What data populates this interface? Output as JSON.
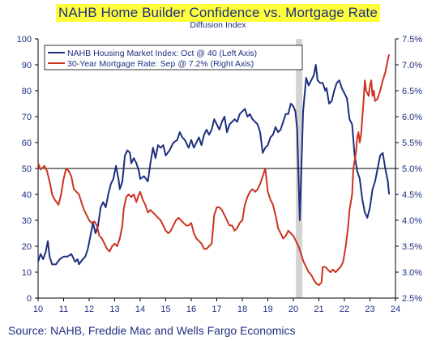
{
  "chart_data": {
    "type": "line",
    "title": "NAHB Home Builder Confidence vs. Mortgage Rate",
    "subtitle": "Diffusion Index",
    "source": "Source: NAHB, Freddie Mac and Wells Fargo Economics",
    "x_ticks": [
      "10",
      "11",
      "12",
      "13",
      "14",
      "15",
      "16",
      "17",
      "18",
      "19",
      "20",
      "21",
      "22",
      "23",
      "24"
    ],
    "y_left_ticks": [
      "0",
      "10",
      "20",
      "30",
      "40",
      "50",
      "60",
      "70",
      "80",
      "90",
      "100"
    ],
    "y_right_ticks": [
      "2.5%",
      "3.0%",
      "3.5%",
      "4.0%",
      "4.5%",
      "5.0%",
      "5.5%",
      "6.0%",
      "6.5%",
      "7.0%",
      "7.5%"
    ],
    "xlim": [
      10,
      24
    ],
    "ylim_left": [
      0,
      100
    ],
    "ylim_right": [
      2.5,
      7.5
    ],
    "reference_line_left": 50,
    "recession_shading": [
      20.1,
      20.35
    ],
    "legend_position": "top-left",
    "series": [
      {
        "name": "NAHB Housing Market Index: Oct @ 40 (Left Axis)",
        "axis": "left",
        "color": "#1f2f7f",
        "points": [
          [
            10.0,
            14
          ],
          [
            10.1,
            17
          ],
          [
            10.2,
            15
          ],
          [
            10.3,
            18
          ],
          [
            10.38,
            22
          ],
          [
            10.45,
            16
          ],
          [
            10.55,
            13
          ],
          [
            10.7,
            13
          ],
          [
            10.85,
            15
          ],
          [
            11.0,
            16
          ],
          [
            11.15,
            16
          ],
          [
            11.3,
            17
          ],
          [
            11.45,
            14
          ],
          [
            11.55,
            15
          ],
          [
            11.6,
            13
          ],
          [
            11.75,
            15
          ],
          [
            11.85,
            16
          ],
          [
            11.95,
            19
          ],
          [
            12.05,
            24
          ],
          [
            12.15,
            29
          ],
          [
            12.25,
            25
          ],
          [
            12.35,
            28
          ],
          [
            12.45,
            35
          ],
          [
            12.55,
            37
          ],
          [
            12.65,
            35
          ],
          [
            12.75,
            40
          ],
          [
            12.85,
            44
          ],
          [
            12.95,
            46
          ],
          [
            13.05,
            51
          ],
          [
            13.15,
            46
          ],
          [
            13.2,
            42
          ],
          [
            13.3,
            45
          ],
          [
            13.4,
            55
          ],
          [
            13.5,
            57
          ],
          [
            13.6,
            56
          ],
          [
            13.65,
            52
          ],
          [
            13.75,
            54
          ],
          [
            13.85,
            52
          ],
          [
            13.95,
            49
          ],
          [
            14.0,
            46
          ],
          [
            14.15,
            47
          ],
          [
            14.3,
            45
          ],
          [
            14.4,
            52
          ],
          [
            14.5,
            58
          ],
          [
            14.6,
            54
          ],
          [
            14.7,
            59
          ],
          [
            14.8,
            58
          ],
          [
            14.9,
            59
          ],
          [
            15.0,
            55
          ],
          [
            15.15,
            57
          ],
          [
            15.3,
            60
          ],
          [
            15.45,
            61
          ],
          [
            15.55,
            64
          ],
          [
            15.65,
            62
          ],
          [
            15.75,
            61
          ],
          [
            15.9,
            58
          ],
          [
            16.0,
            61
          ],
          [
            16.1,
            58
          ],
          [
            16.2,
            60
          ],
          [
            16.3,
            62
          ],
          [
            16.4,
            59
          ],
          [
            16.5,
            63
          ],
          [
            16.6,
            65
          ],
          [
            16.7,
            63
          ],
          [
            16.8,
            65
          ],
          [
            16.9,
            69
          ],
          [
            17.0,
            67
          ],
          [
            17.1,
            65
          ],
          [
            17.2,
            68
          ],
          [
            17.3,
            70
          ],
          [
            17.4,
            64
          ],
          [
            17.5,
            67
          ],
          [
            17.6,
            68
          ],
          [
            17.7,
            69
          ],
          [
            17.8,
            68
          ],
          [
            17.9,
            71
          ],
          [
            18.0,
            72
          ],
          [
            18.1,
            73
          ],
          [
            18.2,
            70
          ],
          [
            18.3,
            71
          ],
          [
            18.4,
            69
          ],
          [
            18.5,
            68
          ],
          [
            18.6,
            67
          ],
          [
            18.7,
            64
          ],
          [
            18.75,
            60
          ],
          [
            18.8,
            56
          ],
          [
            18.9,
            58
          ],
          [
            19.0,
            59
          ],
          [
            19.1,
            62
          ],
          [
            19.2,
            63
          ],
          [
            19.3,
            66
          ],
          [
            19.4,
            64
          ],
          [
            19.5,
            65
          ],
          [
            19.6,
            68
          ],
          [
            19.7,
            71
          ],
          [
            19.8,
            71
          ],
          [
            19.9,
            75
          ],
          [
            20.0,
            74
          ],
          [
            20.08,
            72
          ],
          [
            20.15,
            65
          ],
          [
            20.25,
            30
          ],
          [
            20.3,
            46
          ],
          [
            20.38,
            72
          ],
          [
            20.5,
            85
          ],
          [
            20.6,
            82
          ],
          [
            20.7,
            84
          ],
          [
            20.8,
            86
          ],
          [
            20.88,
            90
          ],
          [
            20.95,
            84
          ],
          [
            21.05,
            83
          ],
          [
            21.15,
            83
          ],
          [
            21.25,
            80
          ],
          [
            21.3,
            81
          ],
          [
            21.4,
            75
          ],
          [
            21.5,
            76
          ],
          [
            21.6,
            80
          ],
          [
            21.7,
            83
          ],
          [
            21.8,
            84
          ],
          [
            21.9,
            81
          ],
          [
            22.0,
            79
          ],
          [
            22.1,
            77
          ],
          [
            22.2,
            69
          ],
          [
            22.3,
            67
          ],
          [
            22.4,
            55
          ],
          [
            22.5,
            49
          ],
          [
            22.6,
            46
          ],
          [
            22.7,
            38
          ],
          [
            22.8,
            33
          ],
          [
            22.9,
            31
          ],
          [
            23.0,
            35
          ],
          [
            23.1,
            42
          ],
          [
            23.2,
            45
          ],
          [
            23.3,
            50
          ],
          [
            23.4,
            55
          ],
          [
            23.5,
            56
          ],
          [
            23.6,
            50
          ],
          [
            23.7,
            45
          ],
          [
            23.75,
            40
          ]
        ]
      },
      {
        "name": "30-Year Mortgage Rate: Sep @ 7.2% (Right Axis)",
        "axis": "right",
        "color": "#cc3322",
        "points": [
          [
            10.0,
            5.1
          ],
          [
            10.1,
            4.98
          ],
          [
            10.25,
            5.05
          ],
          [
            10.35,
            4.95
          ],
          [
            10.45,
            4.75
          ],
          [
            10.55,
            4.5
          ],
          [
            10.65,
            4.4
          ],
          [
            10.8,
            4.3
          ],
          [
            10.9,
            4.5
          ],
          [
            11.0,
            4.8
          ],
          [
            11.1,
            5.0
          ],
          [
            11.2,
            4.95
          ],
          [
            11.3,
            4.85
          ],
          [
            11.4,
            4.6
          ],
          [
            11.5,
            4.55
          ],
          [
            11.6,
            4.5
          ],
          [
            11.7,
            4.35
          ],
          [
            11.8,
            4.2
          ],
          [
            11.9,
            4.1
          ],
          [
            12.0,
            4.0
          ],
          [
            12.1,
            3.95
          ],
          [
            12.2,
            3.98
          ],
          [
            12.3,
            3.9
          ],
          [
            12.4,
            3.7
          ],
          [
            12.5,
            3.65
          ],
          [
            12.6,
            3.55
          ],
          [
            12.7,
            3.45
          ],
          [
            12.8,
            3.4
          ],
          [
            12.9,
            3.5
          ],
          [
            13.0,
            3.55
          ],
          [
            13.1,
            3.5
          ],
          [
            13.2,
            3.65
          ],
          [
            13.3,
            3.9
          ],
          [
            13.35,
            4.2
          ],
          [
            13.45,
            4.45
          ],
          [
            13.55,
            4.5
          ],
          [
            13.65,
            4.45
          ],
          [
            13.75,
            4.5
          ],
          [
            13.85,
            4.35
          ],
          [
            13.95,
            4.5
          ],
          [
            14.0,
            4.55
          ],
          [
            14.1,
            4.4
          ],
          [
            14.2,
            4.3
          ],
          [
            14.3,
            4.15
          ],
          [
            14.4,
            4.2
          ],
          [
            14.5,
            4.15
          ],
          [
            14.6,
            4.1
          ],
          [
            14.7,
            4.05
          ],
          [
            14.8,
            4.0
          ],
          [
            14.9,
            3.9
          ],
          [
            15.0,
            3.8
          ],
          [
            15.1,
            3.75
          ],
          [
            15.2,
            3.8
          ],
          [
            15.3,
            3.9
          ],
          [
            15.4,
            4.0
          ],
          [
            15.5,
            4.05
          ],
          [
            15.6,
            4.0
          ],
          [
            15.7,
            3.95
          ],
          [
            15.8,
            3.9
          ],
          [
            15.9,
            3.9
          ],
          [
            16.0,
            3.95
          ],
          [
            16.1,
            3.75
          ],
          [
            16.2,
            3.65
          ],
          [
            16.3,
            3.6
          ],
          [
            16.4,
            3.55
          ],
          [
            16.5,
            3.45
          ],
          [
            16.6,
            3.45
          ],
          [
            16.7,
            3.5
          ],
          [
            16.8,
            3.55
          ],
          [
            16.9,
            4.1
          ],
          [
            17.0,
            4.25
          ],
          [
            17.1,
            4.25
          ],
          [
            17.2,
            4.2
          ],
          [
            17.3,
            4.1
          ],
          [
            17.4,
            4.0
          ],
          [
            17.5,
            3.9
          ],
          [
            17.6,
            3.9
          ],
          [
            17.7,
            3.8
          ],
          [
            17.8,
            3.85
          ],
          [
            17.9,
            3.95
          ],
          [
            18.0,
            4.0
          ],
          [
            18.1,
            4.3
          ],
          [
            18.2,
            4.45
          ],
          [
            18.3,
            4.55
          ],
          [
            18.4,
            4.6
          ],
          [
            18.5,
            4.55
          ],
          [
            18.6,
            4.6
          ],
          [
            18.7,
            4.7
          ],
          [
            18.8,
            4.85
          ],
          [
            18.9,
            5.0
          ],
          [
            19.0,
            4.55
          ],
          [
            19.1,
            4.4
          ],
          [
            19.2,
            4.3
          ],
          [
            19.3,
            4.1
          ],
          [
            19.4,
            3.85
          ],
          [
            19.5,
            3.75
          ],
          [
            19.6,
            3.65
          ],
          [
            19.7,
            3.7
          ],
          [
            19.8,
            3.8
          ],
          [
            19.9,
            3.75
          ],
          [
            20.0,
            3.7
          ],
          [
            20.1,
            3.6
          ],
          [
            20.2,
            3.5
          ],
          [
            20.3,
            3.35
          ],
          [
            20.4,
            3.2
          ],
          [
            20.5,
            3.1
          ],
          [
            20.6,
            3.0
          ],
          [
            20.7,
            2.95
          ],
          [
            20.8,
            2.85
          ],
          [
            20.9,
            2.78
          ],
          [
            21.0,
            2.75
          ],
          [
            21.1,
            2.8
          ],
          [
            21.15,
            3.1
          ],
          [
            21.25,
            3.1
          ],
          [
            21.35,
            3.05
          ],
          [
            21.45,
            3.0
          ],
          [
            21.55,
            3.05
          ],
          [
            21.65,
            3.0
          ],
          [
            21.75,
            3.05
          ],
          [
            21.85,
            3.1
          ],
          [
            21.95,
            3.2
          ],
          [
            22.05,
            3.5
          ],
          [
            22.15,
            3.9
          ],
          [
            22.2,
            4.2
          ],
          [
            22.3,
            4.5
          ],
          [
            22.35,
            5.0
          ],
          [
            22.45,
            5.3
          ],
          [
            22.5,
            5.6
          ],
          [
            22.55,
            5.7
          ],
          [
            22.6,
            5.5
          ],
          [
            22.65,
            5.65
          ],
          [
            22.75,
            6.3
          ],
          [
            22.8,
            6.7
          ],
          [
            22.85,
            6.5
          ],
          [
            22.95,
            6.4
          ],
          [
            23.0,
            6.6
          ],
          [
            23.05,
            6.7
          ],
          [
            23.1,
            6.4
          ],
          [
            23.15,
            6.5
          ],
          [
            23.2,
            6.3
          ],
          [
            23.3,
            6.35
          ],
          [
            23.4,
            6.5
          ],
          [
            23.5,
            6.7
          ],
          [
            23.6,
            6.85
          ],
          [
            23.7,
            7.1
          ],
          [
            23.75,
            7.2
          ]
        ]
      }
    ]
  }
}
